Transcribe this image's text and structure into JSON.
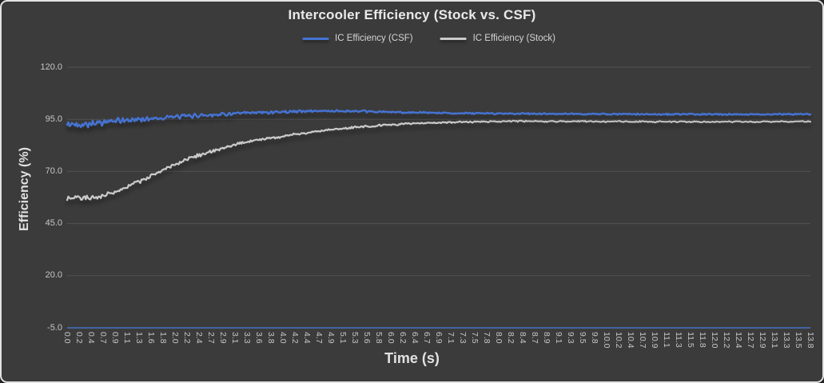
{
  "frame": {
    "background_color": "#3b3b3b",
    "border_color": "#e2e2e2"
  },
  "chart_data": {
    "type": "line",
    "title": "Intercooler Efficiency (Stock vs. CSF)",
    "xlabel": "Time (s)",
    "ylabel": "Efficiency (%)",
    "ylim": [
      -5.0,
      120.0
    ],
    "x_max_seconds": 13.8,
    "grid": "horizontal",
    "gridline_color": "#515151",
    "axis_line_color": "#4472c4",
    "legend_position": "top",
    "y_tick_values": [
      120.0,
      95.0,
      70.0,
      45.0,
      20.0,
      -5.0
    ],
    "y_tick_labels": [
      "120.0",
      "95.0",
      "70.0",
      "45.0",
      "20.0",
      "-5.0"
    ],
    "x_tick_labels": [
      "0.0",
      "0.2",
      "0.4",
      "0.7",
      "0.9",
      "1.1",
      "1.3",
      "1.6",
      "1.8",
      "2.0",
      "2.2",
      "2.4",
      "2.7",
      "2.9",
      "3.1",
      "3.3",
      "3.6",
      "3.8",
      "4.0",
      "4.2",
      "4.4",
      "4.7",
      "4.9",
      "5.1",
      "5.3",
      "5.6",
      "5.8",
      "6.0",
      "6.2",
      "6.4",
      "6.7",
      "6.9",
      "7.1",
      "7.3",
      "7.5",
      "7.8",
      "8.0",
      "8.2",
      "8.4",
      "8.7",
      "8.9",
      "9.1",
      "9.3",
      "9.5",
      "9.8",
      "10.0",
      "10.2",
      "10.4",
      "10.7",
      "10.9",
      "11.1",
      "11.3",
      "11.5",
      "11.8",
      "12.0",
      "12.2",
      "12.4",
      "12.7",
      "12.9",
      "13.1",
      "13.3",
      "13.5",
      "13.8"
    ],
    "series": [
      {
        "name": "IC Efficiency (Stock)",
        "color": "#cbcbcb",
        "stroke_width": 2.2,
        "noise_start": 1.3,
        "noise_end": 0.3,
        "keyframes": [
          [
            0.0,
            57.5
          ],
          [
            0.25,
            57.0
          ],
          [
            0.55,
            57.8
          ],
          [
            0.9,
            60.5
          ],
          [
            1.2,
            63.5
          ],
          [
            1.5,
            67.0
          ],
          [
            1.8,
            71.0
          ],
          [
            2.2,
            75.5
          ],
          [
            2.6,
            79.0
          ],
          [
            3.0,
            82.0
          ],
          [
            3.4,
            84.5
          ],
          [
            3.9,
            86.5
          ],
          [
            4.4,
            88.3
          ],
          [
            5.0,
            90.3
          ],
          [
            5.6,
            91.7
          ],
          [
            6.2,
            92.7
          ],
          [
            7.0,
            93.5
          ],
          [
            8.0,
            94.0
          ],
          [
            9.0,
            94.05
          ],
          [
            10.0,
            93.95
          ],
          [
            11.0,
            93.85
          ],
          [
            12.0,
            93.85
          ],
          [
            13.0,
            93.9
          ],
          [
            13.8,
            94.0
          ]
        ]
      },
      {
        "name": "IC Efficiency (CSF)",
        "color": "#4573d4",
        "stroke_width": 2.4,
        "noise_start": 1.7,
        "noise_end": 0.28,
        "keyframes": [
          [
            0.0,
            92.3
          ],
          [
            0.4,
            93.0
          ],
          [
            0.9,
            94.1
          ],
          [
            1.5,
            95.3
          ],
          [
            2.1,
            96.3
          ],
          [
            2.7,
            97.2
          ],
          [
            3.3,
            97.9
          ],
          [
            4.0,
            98.6
          ],
          [
            4.7,
            99.0
          ],
          [
            5.4,
            98.8
          ],
          [
            6.1,
            98.4
          ],
          [
            7.0,
            98.0
          ],
          [
            8.0,
            97.8
          ],
          [
            9.0,
            97.6
          ],
          [
            10.0,
            97.5
          ],
          [
            11.0,
            97.4
          ],
          [
            12.0,
            97.4
          ],
          [
            13.0,
            97.4
          ],
          [
            13.8,
            97.5
          ]
        ]
      }
    ]
  }
}
